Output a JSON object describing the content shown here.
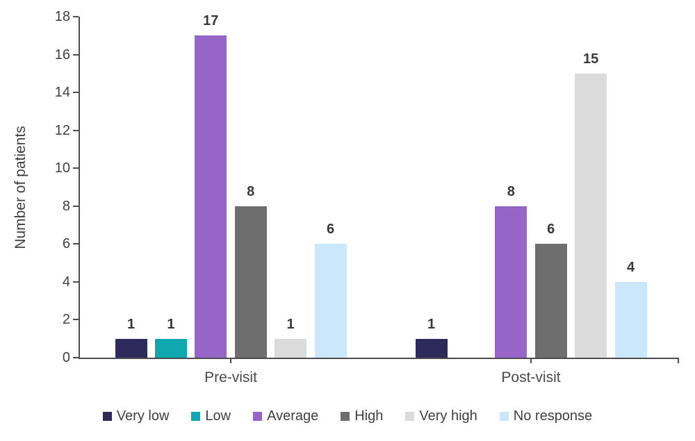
{
  "chart_data": {
    "type": "bar",
    "title": "",
    "xlabel": "",
    "ylabel": "Number of patients",
    "categories": [
      "Pre-visit",
      "Post-visit"
    ],
    "series": [
      {
        "name": "Very low",
        "color": "#2e2a5b",
        "values": [
          1,
          1
        ]
      },
      {
        "name": "Low",
        "color": "#0fa8b0",
        "values": [
          1,
          0
        ]
      },
      {
        "name": "Average",
        "color": "#9765c8",
        "values": [
          17,
          8
        ]
      },
      {
        "name": "High",
        "color": "#6e6e6e",
        "values": [
          8,
          6
        ]
      },
      {
        "name": "Very high",
        "color": "#dbdbdb",
        "values": [
          1,
          15
        ]
      },
      {
        "name": "No response",
        "color": "#cbe7fb",
        "values": [
          6,
          4
        ]
      }
    ],
    "ylim": [
      0,
      18
    ],
    "yticks": [
      0,
      2,
      4,
      6,
      8,
      10,
      12,
      14,
      16,
      18
    ],
    "grid": false,
    "legend_position": "bottom",
    "data_labels": "shown above each nonzero bar"
  },
  "colors": {
    "axis": "#4d4d4d",
    "tick_text": "#3f3f3f",
    "data_label_text": "#383838",
    "background": "#ffffff"
  }
}
